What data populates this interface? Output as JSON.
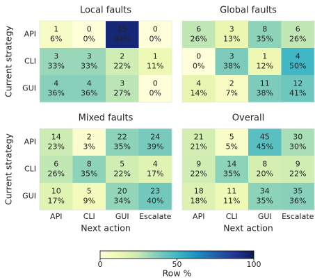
{
  "chart_data": [
    {
      "type": "heatmap",
      "title": "Local faults",
      "ylabel": "Current strategy",
      "rows": [
        "API",
        "CLI",
        "GUI"
      ],
      "counts": [
        [
          1,
          0,
          15,
          0
        ],
        [
          3,
          3,
          2,
          1
        ],
        [
          4,
          4,
          3,
          0
        ]
      ],
      "values": [
        [
          6,
          0,
          94,
          0
        ],
        [
          33,
          33,
          22,
          11
        ],
        [
          36,
          36,
          27,
          0
        ]
      ],
      "value_labels": [
        [
          "6%",
          "0%",
          "94%",
          "0%"
        ],
        [
          "33%",
          "33%",
          "22%",
          "11%"
        ],
        [
          "36%",
          "36%",
          "27%",
          "0%"
        ]
      ]
    },
    {
      "type": "heatmap",
      "title": "Global faults",
      "counts": [
        [
          6,
          3,
          8,
          6
        ],
        [
          0,
          3,
          1,
          4
        ],
        [
          4,
          2,
          11,
          12
        ]
      ],
      "values": [
        [
          26,
          13,
          35,
          26
        ],
        [
          0,
          38,
          12,
          50
        ],
        [
          14,
          7,
          38,
          41
        ]
      ],
      "value_labels": [
        [
          "26%",
          "13%",
          "35%",
          "26%"
        ],
        [
          "0%",
          "38%",
          "12%",
          "50%"
        ],
        [
          "14%",
          "7%",
          "38%",
          "41%"
        ]
      ]
    },
    {
      "type": "heatmap",
      "title": "Mixed faults",
      "ylabel": "Current strategy",
      "rows": [
        "API",
        "CLI",
        "GUI"
      ],
      "xlabel": "Next action",
      "categories": [
        "API",
        "CLI",
        "GUI",
        "Escalate"
      ],
      "counts": [
        [
          14,
          2,
          22,
          24
        ],
        [
          6,
          8,
          5,
          4
        ],
        [
          10,
          5,
          20,
          23
        ]
      ],
      "values": [
        [
          23,
          3,
          35,
          39
        ],
        [
          26,
          35,
          22,
          17
        ],
        [
          17,
          9,
          34,
          40
        ]
      ],
      "value_labels": [
        [
          "23%",
          "3%",
          "35%",
          "39%"
        ],
        [
          "26%",
          "35%",
          "22%",
          "17%"
        ],
        [
          "17%",
          "9%",
          "34%",
          "40%"
        ]
      ]
    },
    {
      "type": "heatmap",
      "title": "Overall",
      "xlabel": "Next action",
      "categories": [
        "API",
        "CLI",
        "GUI",
        "Escalate"
      ],
      "counts": [
        [
          21,
          5,
          45,
          30
        ],
        [
          9,
          14,
          8,
          9
        ],
        [
          18,
          11,
          34,
          35
        ]
      ],
      "values": [
        [
          21,
          5,
          45,
          30
        ],
        [
          22,
          35,
          20,
          22
        ],
        [
          18,
          11,
          35,
          36
        ]
      ],
      "value_labels": [
        [
          "21%",
          "5%",
          "45%",
          "30%"
        ],
        [
          "22%",
          "35%",
          "20%",
          "22%"
        ],
        [
          "18%",
          "11%",
          "35%",
          "36%"
        ]
      ]
    }
  ],
  "colorbar": {
    "label": "Row %",
    "lim": [
      0,
      100
    ],
    "ticks": [
      0,
      50,
      100
    ],
    "colormap": [
      "#ffffd9",
      "#edf8b1",
      "#c7e9b4",
      "#7fcdbb",
      "#41b6c4",
      "#1d91c0",
      "#225ea8",
      "#253494",
      "#081d58"
    ]
  }
}
